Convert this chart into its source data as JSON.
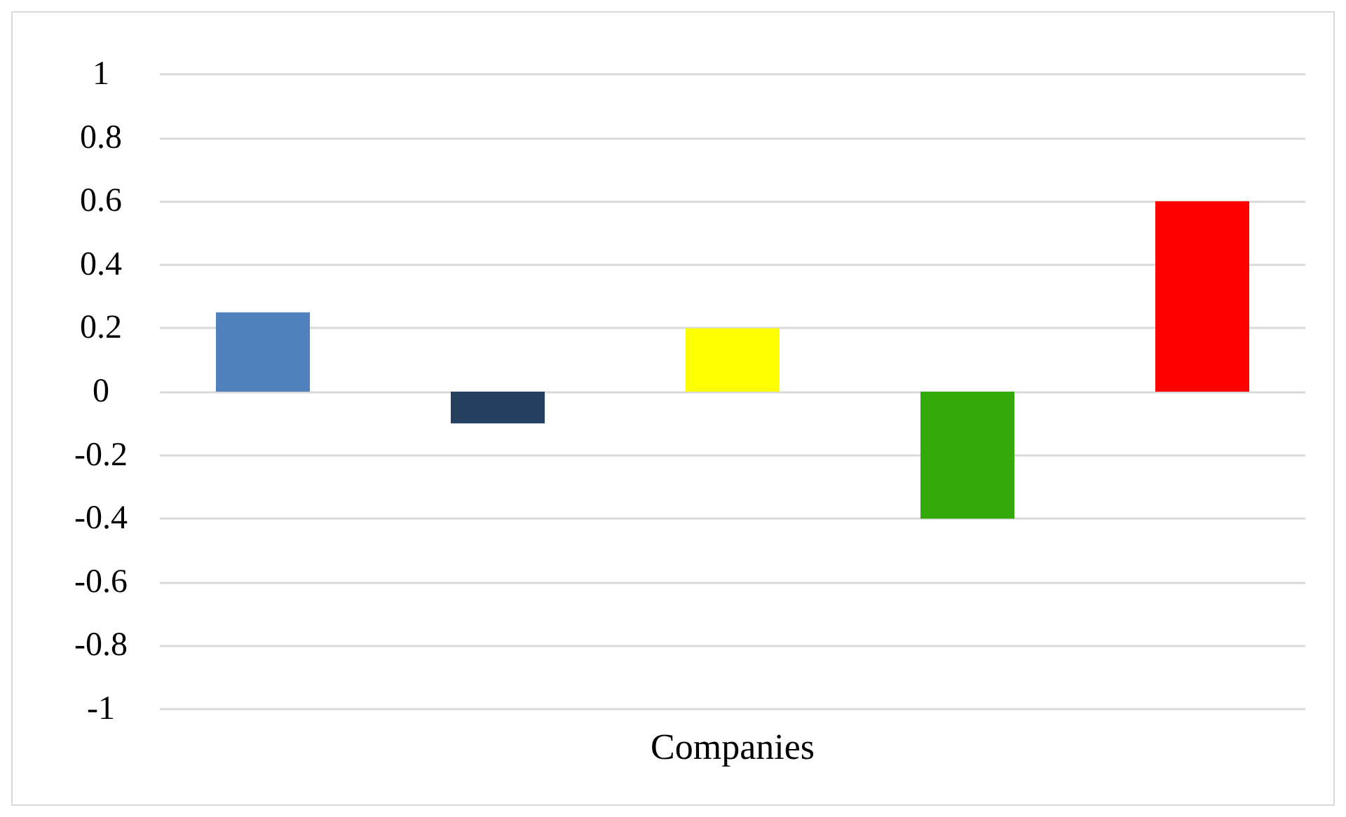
{
  "chart_data": {
    "type": "bar",
    "categories": [
      "Companies"
    ],
    "series": [
      {
        "color": "#4f81bd",
        "values": [
          0.25
        ]
      },
      {
        "color": "#243f60",
        "values": [
          -0.1
        ]
      },
      {
        "color": "#ffff00",
        "values": [
          0.2
        ]
      },
      {
        "color": "#33aa0a",
        "values": [
          -0.4
        ]
      },
      {
        "color": "#ff0000",
        "values": [
          0.6
        ]
      }
    ],
    "ylim": [
      -1,
      1
    ],
    "yticks": [
      -1,
      -0.8,
      -0.6,
      -0.4,
      -0.2,
      0,
      0.2,
      0.4,
      0.6,
      0.8,
      1
    ],
    "grid": "y"
  }
}
